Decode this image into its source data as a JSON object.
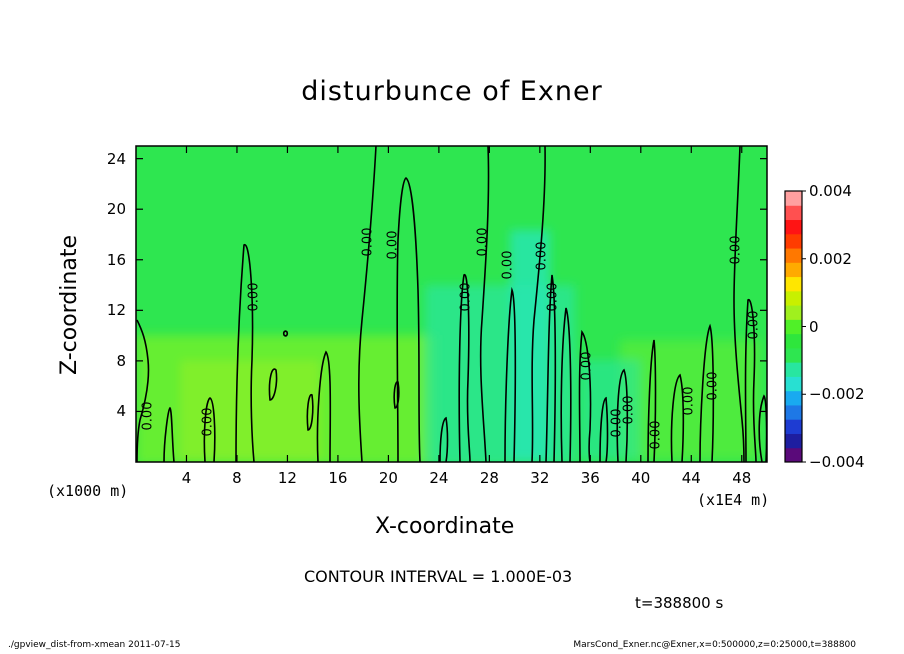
{
  "title": "disturbunce of Exner",
  "chart_data": {
    "type": "heatmap",
    "title": "disturbunce of Exner",
    "xlabel": "X-coordinate",
    "ylabel": "Z-coordinate",
    "x_unit_label": "(x1E4 m)",
    "z_unit_label": "(x1000 m)",
    "xlim": [
      0,
      50
    ],
    "ylim": [
      0,
      25
    ],
    "xticks": [
      "4",
      "8",
      "12",
      "16",
      "20",
      "24",
      "28",
      "32",
      "36",
      "40",
      "44",
      "48"
    ],
    "xtick_values": [
      4,
      8,
      12,
      16,
      20,
      24,
      28,
      32,
      36,
      40,
      44,
      48
    ],
    "yticks": [
      "4",
      "8",
      "12",
      "16",
      "20",
      "24"
    ],
    "ytick_values": [
      4,
      8,
      12,
      16,
      20,
      24
    ],
    "colorbar": {
      "range": [
        -0.004,
        0.004
      ],
      "tick_labels": [
        "0.004",
        "0.002",
        "0",
        "−0.002",
        "−0.004"
      ],
      "tick_values": [
        0.004,
        0.002,
        0,
        -0.002,
        -0.004
      ],
      "colors": [
        "#5a0a7a",
        "#1e1ea0",
        "#1e3cd2",
        "#1e78e6",
        "#19aaf0",
        "#28e0d2",
        "#28e6a0",
        "#2ee650",
        "#2ee63c",
        "#50f028",
        "#a0f01e",
        "#c8f000",
        "#ffe600",
        "#ffaa00",
        "#ff7800",
        "#ff3c00",
        "#ff1414",
        "#ff5050",
        "#ffa0a0"
      ]
    },
    "contour_interval": "CONTOUR INTERVAL = 1.000E-03",
    "contour_label": "0.00",
    "background_value": 0,
    "note": "field near zero everywhere; slight positive anomalies below z=10 and slight negative anomalies near x=28-42"
  },
  "time_label": "t=388800 s",
  "footer_left": "./gpview_dist-from-xmean  2011-07-15",
  "footer_right": "MarsCond_Exner.nc@Exner,x=0:500000,z=0:25000,t=388800",
  "colors": {
    "background_field": "#2ee650",
    "positive_low": "#78f028",
    "negative_low": "#28e6a0",
    "contour": "#000000"
  }
}
